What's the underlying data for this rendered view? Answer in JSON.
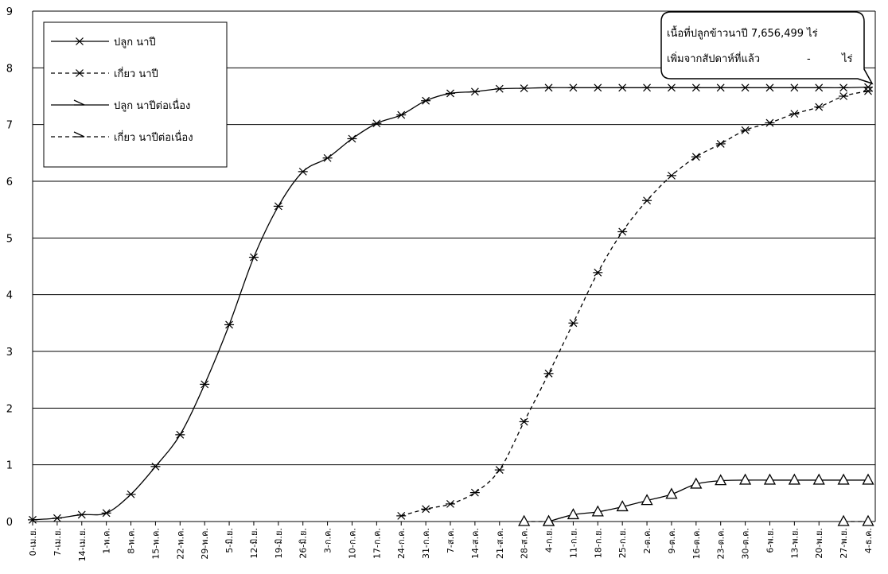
{
  "chart_data": {
    "type": "line",
    "title": "",
    "xlabel": "",
    "ylabel": "",
    "ylim": [
      0,
      9
    ],
    "yticks": [
      0,
      1,
      2,
      3,
      4,
      5,
      6,
      7,
      8,
      9
    ],
    "grid": "horizontal",
    "legend_position": "top-left",
    "categories": [
      "0-เม.ย.",
      "7-เม.ย.",
      "14-เม.ย.",
      "1-พ.ค.",
      "8-พ.ค.",
      "15-พ.ค.",
      "22-พ.ค.",
      "29-พ.ค.",
      "5-มิ.ย.",
      "12-มิ.ย.",
      "19-มิ.ย.",
      "26-มิ.ย.",
      "3-ก.ค.",
      "10-ก.ค.",
      "17-ก.ค.",
      "24-ก.ค.",
      "31-ก.ค.",
      "7-ส.ค.",
      "14-ส.ค.",
      "21-ส.ค.",
      "28-ส.ค.",
      "4-ก.ย.",
      "11-ก.ย.",
      "18-ก.ย.",
      "25-ก.ย.",
      "2-ต.ค.",
      "9-ต.ค.",
      "16-ต.ค.",
      "23-ต.ค.",
      "30-ต.ค.",
      "6-พ.ย.",
      "13-พ.ย.",
      "20-พ.ย.",
      "27-พ.ย.",
      "4-ธ.ค."
    ],
    "series": [
      {
        "name": "ปลูก นาปี",
        "style": "solid",
        "marker": "asterisk",
        "values": [
          0.03,
          0.06,
          0.12,
          0.15,
          0.48,
          0.97,
          1.53,
          2.42,
          3.47,
          4.66,
          5.56,
          6.17,
          6.41,
          6.75,
          7.02,
          7.17,
          7.42,
          7.55,
          7.58,
          7.63,
          7.64,
          7.65,
          7.65,
          7.65,
          7.65,
          7.65,
          7.65,
          7.65,
          7.65,
          7.65,
          7.65,
          7.65,
          7.65,
          7.65,
          7.66
        ]
      },
      {
        "name": "เกี่ยว นาปี",
        "style": "dashed",
        "marker": "asterisk",
        "values": [
          null,
          null,
          null,
          null,
          null,
          null,
          null,
          null,
          null,
          null,
          null,
          null,
          null,
          null,
          null,
          0.1,
          0.22,
          0.31,
          0.51,
          0.91,
          1.76,
          2.61,
          3.5,
          4.39,
          5.11,
          5.66,
          6.1,
          6.43,
          6.66,
          6.9,
          7.03,
          7.19,
          7.31,
          7.5,
          7.59
        ]
      },
      {
        "name": "ปลูก นาปีต่อเนื่อง",
        "style": "solid",
        "marker": "triangle",
        "values": [
          null,
          null,
          null,
          null,
          null,
          null,
          null,
          null,
          null,
          null,
          null,
          null,
          null,
          null,
          null,
          null,
          null,
          null,
          null,
          null,
          null,
          0.0,
          0.12,
          0.17,
          0.26,
          0.37,
          0.48,
          0.66,
          0.72,
          0.73,
          0.73,
          0.73,
          0.73,
          0.73,
          0.73
        ]
      },
      {
        "name": "เกี่ยว นาปีต่อเนื่อง",
        "style": "dashed",
        "marker": "triangle",
        "values": [
          null,
          null,
          null,
          null,
          null,
          null,
          null,
          null,
          null,
          null,
          null,
          null,
          null,
          null,
          null,
          null,
          null,
          null,
          null,
          null,
          0.0,
          0.0,
          null,
          null,
          null,
          null,
          null,
          null,
          null,
          null,
          null,
          null,
          null,
          0.0,
          0.0
        ]
      }
    ],
    "annotation": {
      "line1": "เนื้อที่ปลูกข้าวนาปี 7,656,499 ไร่",
      "line2_left": "เพิ่มจากสัปดาห์ที่แล้ว",
      "line2_mid": "-",
      "line2_right": "ไร่"
    }
  }
}
